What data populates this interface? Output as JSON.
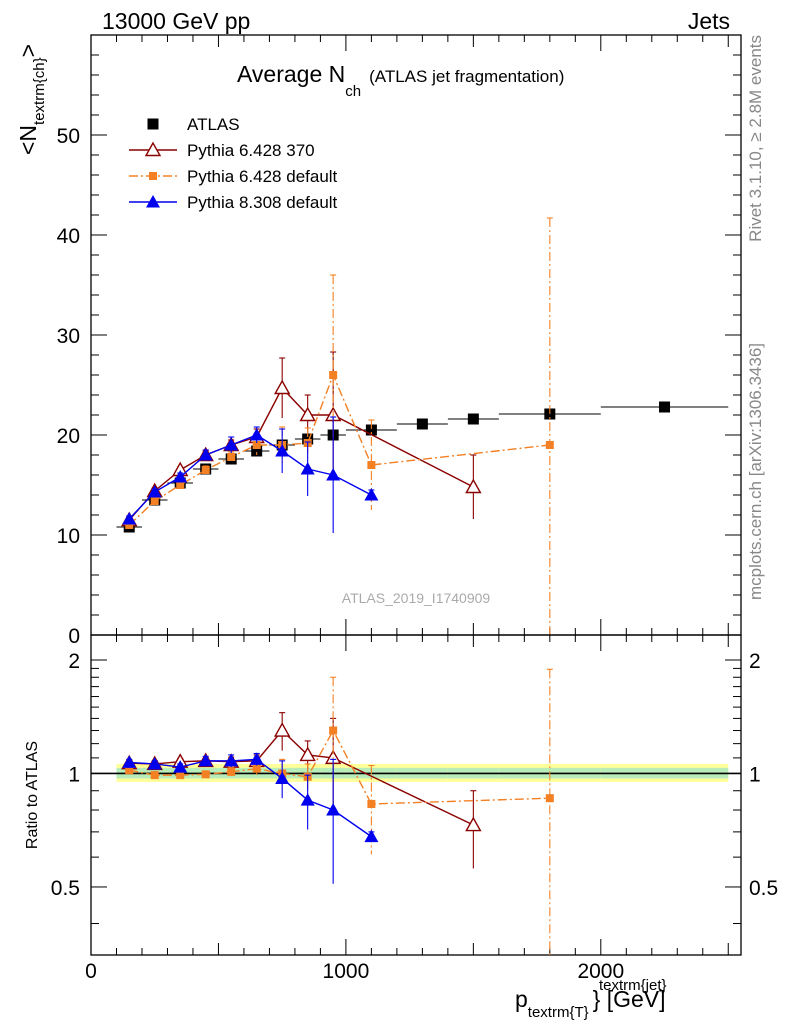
{
  "header": {
    "left": "13000 GeV pp",
    "right": "Jets"
  },
  "side_labels": {
    "rivet": "Rivet 3.1.10, ≥ 2.8M events",
    "mcplots": "mcplots.cern.ch [arXiv:1306.3436]"
  },
  "chart_data": [
    {
      "type": "scatter",
      "title_main": "Average N",
      "title_sub": "ch",
      "title_paren": "(ATLAS jet fragmentation)",
      "ylabel_main": "<N",
      "ylabel_sub": "textrm{ch}",
      "ylabel_end": ">",
      "ylim": [
        0,
        60
      ],
      "yticks": [
        0,
        10,
        20,
        30,
        40,
        50
      ],
      "watermark": "ATLAS_2019_I1740909",
      "legend_position": "top-left",
      "series": [
        {
          "name": "ATLAS",
          "color": "#000000",
          "marker": "filled-square",
          "x": [
            150,
            250,
            350,
            450,
            550,
            650,
            750,
            850,
            950,
            1100,
            1300,
            1500,
            1800,
            2250
          ],
          "y": [
            10.8,
            13.5,
            15.2,
            16.6,
            17.6,
            18.4,
            19.0,
            19.6,
            20.0,
            20.5,
            21.1,
            21.6,
            22.1,
            22.8
          ],
          "xerr": [
            50,
            50,
            50,
            50,
            50,
            50,
            50,
            50,
            50,
            100,
            100,
            100,
            200,
            250
          ]
        },
        {
          "name": "Pythia 6.428 370",
          "color": "#8b0000",
          "marker": "open-triangle",
          "line": "solid",
          "x": [
            150,
            250,
            350,
            450,
            550,
            650,
            750,
            850,
            950,
            1500
          ],
          "y": [
            11.5,
            14.4,
            16.5,
            18.0,
            19.0,
            19.8,
            24.7,
            22.0,
            22.0,
            14.8
          ],
          "yerr": [
            0.3,
            0.3,
            0.3,
            0.4,
            0.5,
            0.8,
            3.0,
            2.0,
            6.3,
            3.2
          ]
        },
        {
          "name": "Pythia 6.428 default",
          "color": "#f48024",
          "marker": "filled-square-small",
          "line": "dash-dot",
          "x": [
            150,
            250,
            350,
            450,
            550,
            650,
            750,
            850,
            950,
            1100,
            1800
          ],
          "y": [
            11.0,
            13.4,
            15.0,
            16.5,
            17.8,
            19.0,
            19.0,
            19.2,
            26.0,
            17.0,
            19.0
          ],
          "yerr": [
            0.3,
            0.3,
            0.3,
            0.4,
            0.5,
            1.0,
            1.8,
            1.5,
            10.0,
            4.5,
            22.7
          ]
        },
        {
          "name": "Pythia 8.308 default",
          "color": "#0000ee",
          "marker": "filled-triangle",
          "line": "solid",
          "x": [
            150,
            250,
            350,
            450,
            550,
            650,
            750,
            850,
            950,
            1100
          ],
          "y": [
            11.6,
            14.3,
            15.8,
            18.0,
            19.0,
            20.0,
            18.4,
            16.6,
            16.0,
            14.0
          ],
          "yerr": [
            0.3,
            0.3,
            0.4,
            0.5,
            0.8,
            0.8,
            2.2,
            2.7,
            5.8,
            0.5
          ]
        }
      ]
    },
    {
      "type": "scatter",
      "ylabel": "Ratio to ATLAS",
      "xlabel_main": "p",
      "xlabel_sub": "textrm{T}",
      "xlabel_sup": "textrm{jet}",
      "xlabel_end": "} [GeV]",
      "xlim": [
        0,
        2550
      ],
      "xticks": [
        0,
        1000,
        2000
      ],
      "ylim": [
        0.33,
        2.33
      ],
      "yticks": [
        0.5,
        1,
        2
      ],
      "reference_line": 1.0,
      "series": [
        {
          "name": "Pythia 6.428 370",
          "x": [
            150,
            250,
            350,
            450,
            550,
            650,
            750,
            850,
            950,
            1500
          ],
          "y": [
            1.065,
            1.06,
            1.075,
            1.08,
            1.075,
            1.08,
            1.3,
            1.12,
            1.1,
            0.73
          ],
          "yerr": [
            0.02,
            0.02,
            0.02,
            0.02,
            0.03,
            0.04,
            0.15,
            0.1,
            0.3,
            0.17
          ]
        },
        {
          "name": "Pythia 6.428 default",
          "x": [
            150,
            250,
            350,
            450,
            550,
            650,
            750,
            850,
            950,
            1100,
            1800
          ],
          "y": [
            1.02,
            0.99,
            0.99,
            0.995,
            1.01,
            1.03,
            1.0,
            0.98,
            1.3,
            0.83,
            0.86
          ],
          "yerr": [
            0.02,
            0.02,
            0.02,
            0.02,
            0.03,
            0.05,
            0.09,
            0.08,
            0.5,
            0.22,
            1.03
          ]
        },
        {
          "name": "Pythia 8.308 default",
          "x": [
            150,
            250,
            350,
            450,
            550,
            650,
            750,
            850,
            950,
            1100
          ],
          "y": [
            1.07,
            1.06,
            1.04,
            1.08,
            1.08,
            1.09,
            0.97,
            0.85,
            0.8,
            0.68
          ],
          "yerr": [
            0.02,
            0.02,
            0.02,
            0.03,
            0.04,
            0.04,
            0.11,
            0.14,
            0.29,
            0.02
          ]
        }
      ]
    }
  ]
}
